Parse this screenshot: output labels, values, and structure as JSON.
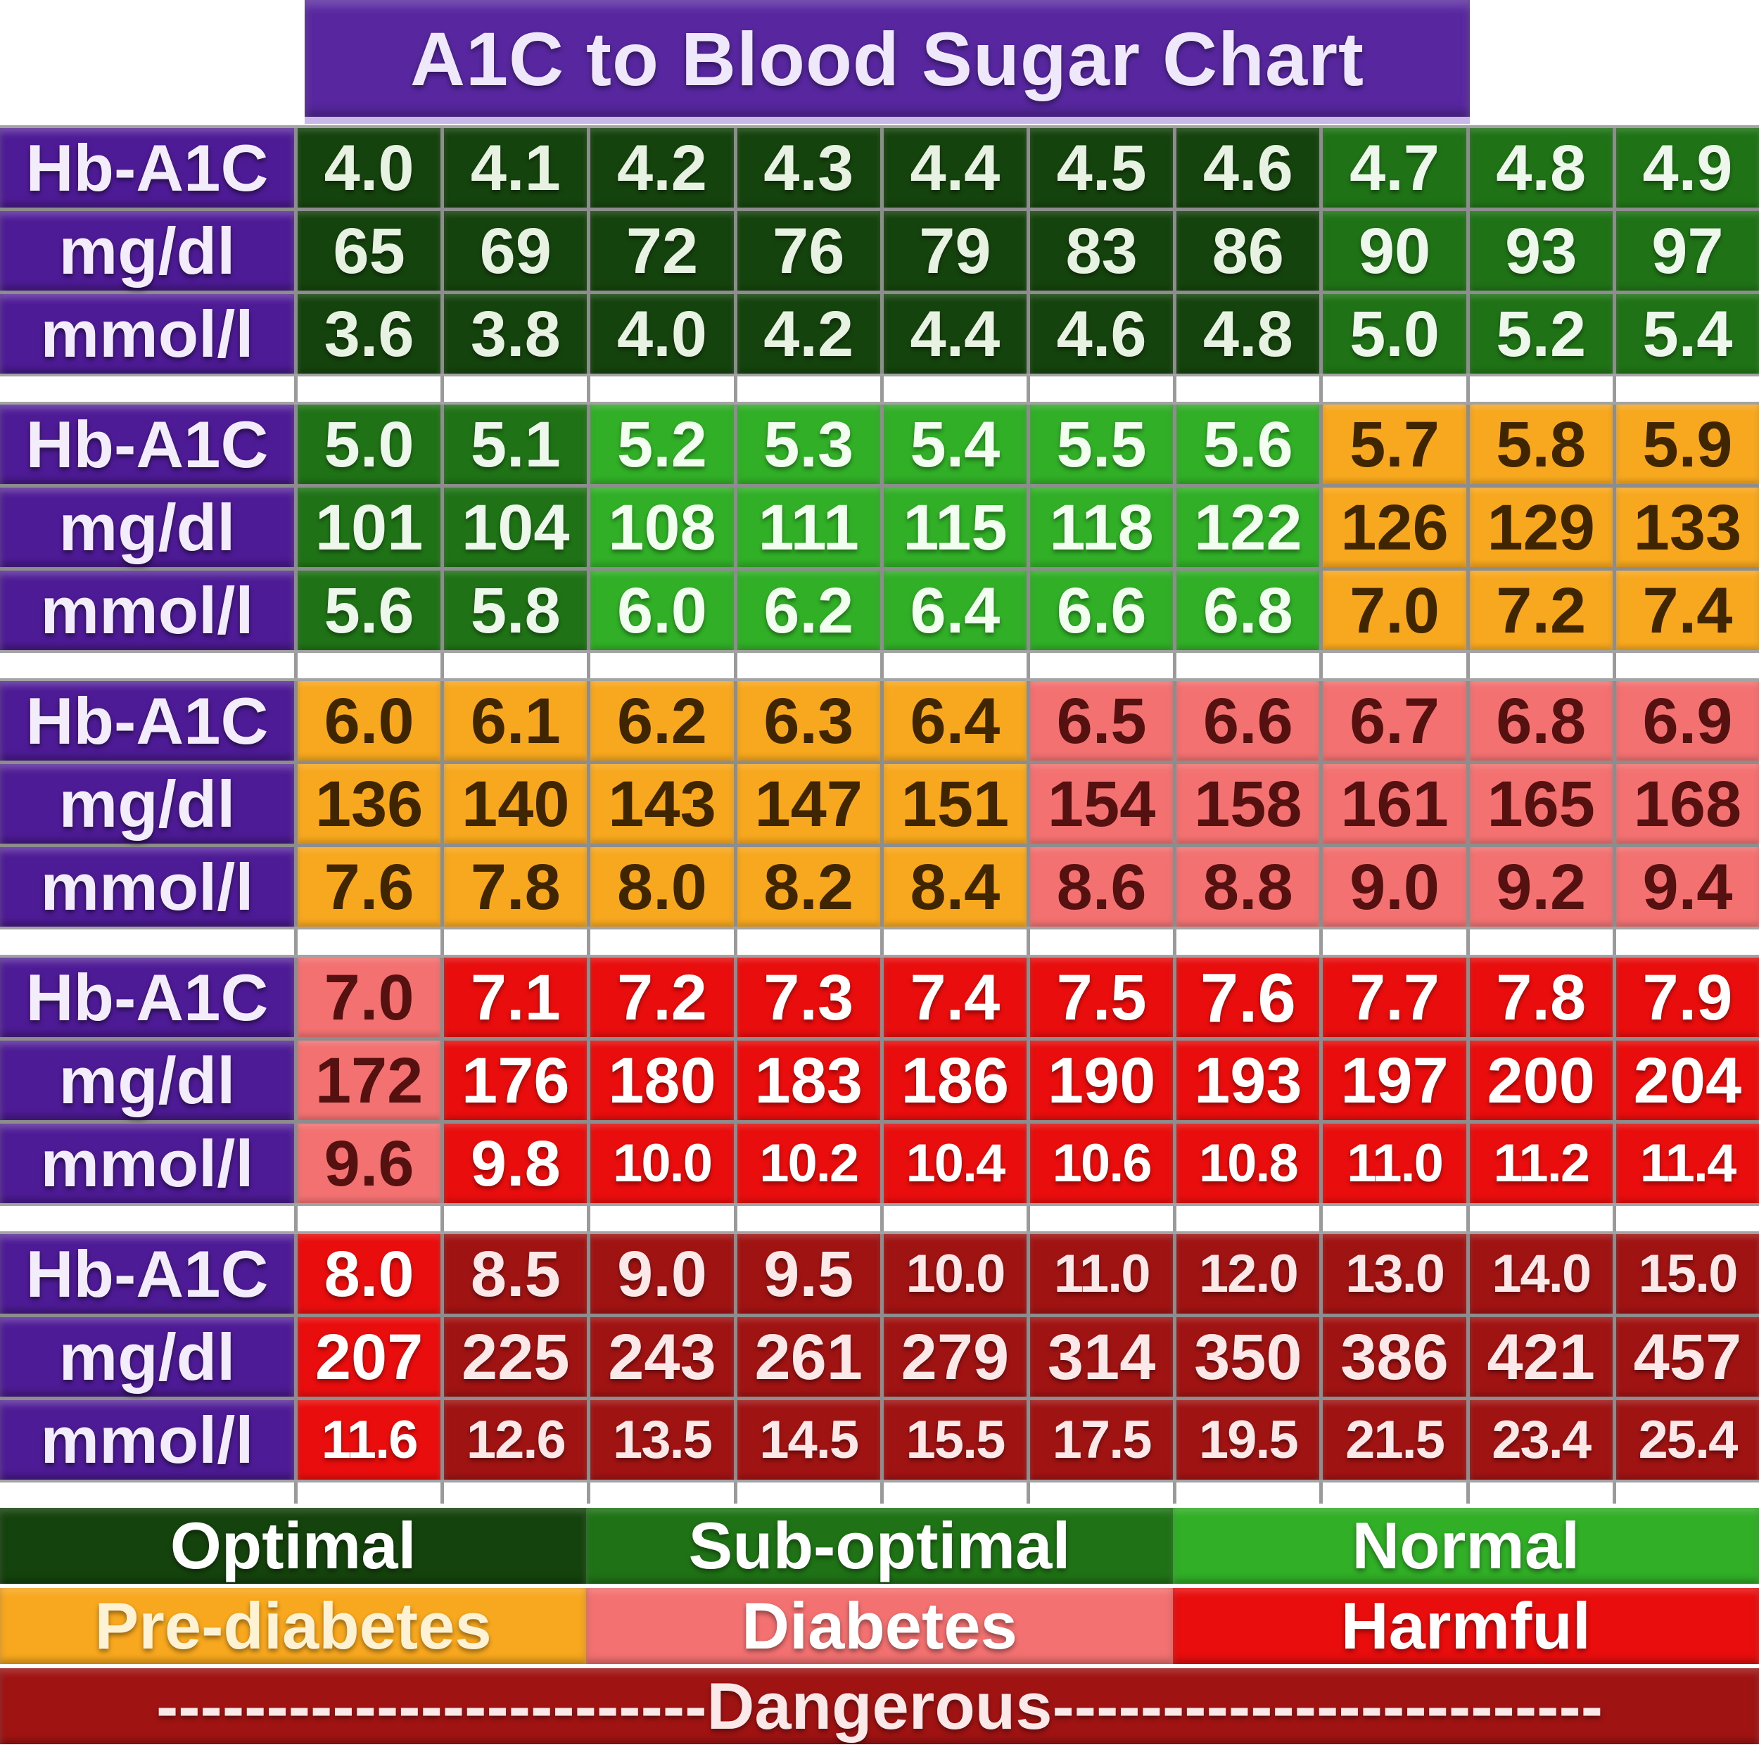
{
  "title": {
    "text": "A1C to Blood Sugar Chart",
    "bg": "#5827a0",
    "fg": "#efe7fa",
    "underline": "#c9b9e8"
  },
  "header": {
    "bg": "#4e1b96",
    "fg": "#f2ecfb"
  },
  "grid": {
    "line": "#8d8d8d",
    "block_edge": "#a3a3a3",
    "background": "#ffffff"
  },
  "zones": {
    "optimal": {
      "bg": "#15430d",
      "cell_fg": "#e7f2e2",
      "legend_fg": "#ffffff"
    },
    "suboptimal": {
      "bg": "#1f7316",
      "cell_fg": "#eef7ec",
      "legend_fg": "#ffffff"
    },
    "normal": {
      "bg": "#31af27",
      "cell_fg": "#f2fff0",
      "legend_fg": "#ffffff"
    },
    "prediabetes": {
      "bg": "#f8a81e",
      "cell_fg": "#402501",
      "legend_fg": "#fdf3d4"
    },
    "diabetes": {
      "bg": "#f37171",
      "cell_fg": "#551010",
      "legend_fg": "#ffffff"
    },
    "harmful": {
      "bg": "#e90d0d",
      "cell_fg": "#ffffff",
      "legend_fg": "#ffffff"
    },
    "dangerous": {
      "bg": "#a01313",
      "cell_fg": "#fbe9e9",
      "legend_fg": "#fbe9e9"
    }
  },
  "chart_data": {
    "type": "table",
    "title": "A1C to Blood Sugar Chart",
    "row_labels": [
      "Hb-A1C",
      "mg/dl",
      "mmol/l"
    ],
    "blocks": [
      {
        "a1c": [
          "4.0",
          "4.1",
          "4.2",
          "4.3",
          "4.4",
          "4.5",
          "4.6",
          "4.7",
          "4.8",
          "4.9"
        ],
        "mgdl": [
          "65",
          "69",
          "72",
          "76",
          "79",
          "83",
          "86",
          "90",
          "93",
          "97"
        ],
        "mmol": [
          "3.6",
          "3.8",
          "4.0",
          "4.2",
          "4.4",
          "4.6",
          "4.8",
          "5.0",
          "5.2",
          "5.4"
        ],
        "zone": [
          "optimal",
          "optimal",
          "optimal",
          "optimal",
          "optimal",
          "optimal",
          "optimal",
          "suboptimal",
          "suboptimal",
          "suboptimal"
        ]
      },
      {
        "a1c": [
          "5.0",
          "5.1",
          "5.2",
          "5.3",
          "5.4",
          "5.5",
          "5.6",
          "5.7",
          "5.8",
          "5.9"
        ],
        "mgdl": [
          "101",
          "104",
          "108",
          "111",
          "115",
          "118",
          "122",
          "126",
          "129",
          "133"
        ],
        "mmol": [
          "5.6",
          "5.8",
          "6.0",
          "6.2",
          "6.4",
          "6.6",
          "6.8",
          "7.0",
          "7.2",
          "7.4"
        ],
        "zone": [
          "suboptimal",
          "suboptimal",
          "normal",
          "normal",
          "normal",
          "normal",
          "normal",
          "prediabetes",
          "prediabetes",
          "prediabetes"
        ]
      },
      {
        "a1c": [
          "6.0",
          "6.1",
          "6.2",
          "6.3",
          "6.4",
          "6.5",
          "6.6",
          "6.7",
          "6.8",
          "6.9"
        ],
        "mgdl": [
          "136",
          "140",
          "143",
          "147",
          "151",
          "154",
          "158",
          "161",
          "165",
          "168"
        ],
        "mmol": [
          "7.6",
          "7.8",
          "8.0",
          "8.2",
          "8.4",
          "8.6",
          "8.8",
          "9.0",
          "9.2",
          "9.4"
        ],
        "zone": [
          "prediabetes",
          "prediabetes",
          "prediabetes",
          "prediabetes",
          "prediabetes",
          "diabetes",
          "diabetes",
          "diabetes",
          "diabetes",
          "diabetes"
        ]
      },
      {
        "a1c": [
          "7.0",
          "7.1",
          "7.2",
          "7.3",
          "7.4",
          "7.5",
          "7.6",
          "7.7",
          "7.8",
          "7.9"
        ],
        "mgdl": [
          "172",
          "176",
          "180",
          "183",
          "186",
          "190",
          "193",
          "197",
          "200",
          "204"
        ],
        "mmol": [
          "9.6",
          "9.8",
          "10.0",
          "10.2",
          "10.4",
          "10.6",
          "10.8",
          "11.0",
          "11.2",
          "11.4"
        ],
        "zone": [
          "diabetes",
          "harmful",
          "harmful",
          "harmful",
          "harmful",
          "harmful",
          "harmful",
          "harmful",
          "harmful",
          "harmful"
        ],
        "emphasis_index": 6
      },
      {
        "a1c": [
          "8.0",
          "8.5",
          "9.0",
          "9.5",
          "10.0",
          "11.0",
          "12.0",
          "13.0",
          "14.0",
          "15.0"
        ],
        "mgdl": [
          "207",
          "225",
          "243",
          "261",
          "279",
          "314",
          "350",
          "386",
          "421",
          "457"
        ],
        "mmol": [
          "11.6",
          "12.6",
          "13.5",
          "14.5",
          "15.5",
          "17.5",
          "19.5",
          "21.5",
          "23.4",
          "25.4"
        ],
        "zone": [
          "harmful",
          "dangerous",
          "dangerous",
          "dangerous",
          "dangerous",
          "dangerous",
          "dangerous",
          "dangerous",
          "dangerous",
          "dangerous"
        ]
      }
    ],
    "legend": {
      "rows": [
        {
          "segments": [
            {
              "label": "Optimal",
              "zone": "optimal"
            },
            {
              "label": "Sub-optimal",
              "zone": "suboptimal"
            },
            {
              "label": "Normal",
              "zone": "normal"
            }
          ]
        },
        {
          "segments": [
            {
              "label": "Pre-diabetes",
              "zone": "prediabetes"
            },
            {
              "label": "Diabetes",
              "zone": "diabetes"
            },
            {
              "label": "Harmful",
              "zone": "harmful"
            }
          ]
        },
        {
          "segments": [
            {
              "label": "Dangerous",
              "zone": "dangerous",
              "dashes": true
            }
          ]
        }
      ],
      "dash": "-------------------------"
    }
  }
}
